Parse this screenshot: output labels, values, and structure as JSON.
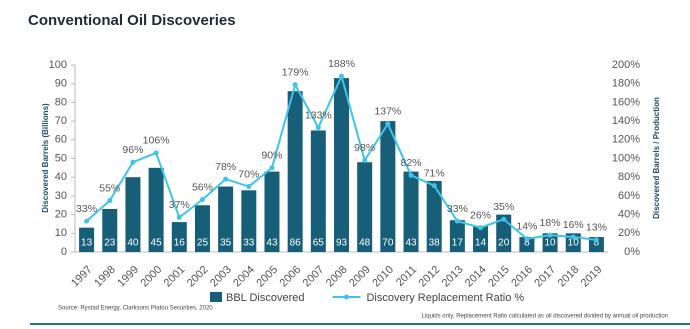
{
  "chart_data": {
    "type": "combo",
    "title": "Conventional Oil Discoveries",
    "y_label": "Discovered Barrels (Billions)",
    "y2_label": "Discovered Barrels / Production",
    "source": "Source: Rystad Energy, Clarksons Platou Securities, 2020",
    "footnote": "Liquids only. Replacement Ratio calculated as oil discovered divided by annual oil production",
    "categories": [
      "1997",
      "1998",
      "1999",
      "2000",
      "2001",
      "2002",
      "2003",
      "2004",
      "2005",
      "2006",
      "2007",
      "2008",
      "2009",
      "2010",
      "2011",
      "2012",
      "2013",
      "2014",
      "2015",
      "2016",
      "2017",
      "2018",
      "2019"
    ],
    "series": [
      {
        "name": "BBL Discovered",
        "type": "bar",
        "color": "#175e79",
        "values": [
          13,
          23,
          40,
          45,
          16,
          25,
          35,
          33,
          43,
          86,
          65,
          93,
          48,
          70,
          43,
          38,
          17,
          14,
          20,
          8,
          10,
          10,
          8
        ]
      },
      {
        "name": "Discovery Replacement Ratio %",
        "type": "line",
        "axis": "y2",
        "color": "#3ec4ea",
        "values": [
          33,
          55,
          96,
          106,
          37,
          56,
          78,
          70,
          90,
          179,
          133,
          188,
          98,
          137,
          82,
          71,
          33,
          26,
          35,
          14,
          18,
          16,
          13
        ],
        "value_labels": [
          "33%",
          "55%",
          "96%",
          "106%",
          "37%",
          "56%",
          "78%",
          "70%",
          "90%",
          "179%",
          "133%",
          "188%",
          "98%",
          "137%",
          "82%",
          "71%",
          "33%",
          "26%",
          "35%",
          "14%",
          "18%",
          "16%",
          "13%"
        ]
      }
    ],
    "ylim": [
      0,
      100
    ],
    "yticks": [
      0,
      10,
      20,
      30,
      40,
      50,
      60,
      70,
      80,
      90,
      100
    ],
    "y2lim": [
      0,
      200
    ],
    "y2ticks": [
      {
        "value": 0,
        "label": "0%"
      },
      {
        "value": 20,
        "label": "20%"
      },
      {
        "value": 40,
        "label": "40%"
      },
      {
        "value": 60,
        "label": "60%"
      },
      {
        "value": 80,
        "label": "80%"
      },
      {
        "value": 100,
        "label": "100%"
      },
      {
        "value": 120,
        "label": "120%"
      },
      {
        "value": 140,
        "label": "140%"
      },
      {
        "value": 160,
        "label": "160%"
      },
      {
        "value": 180,
        "label": "180%"
      },
      {
        "value": 200,
        "label": "200%"
      }
    ]
  }
}
